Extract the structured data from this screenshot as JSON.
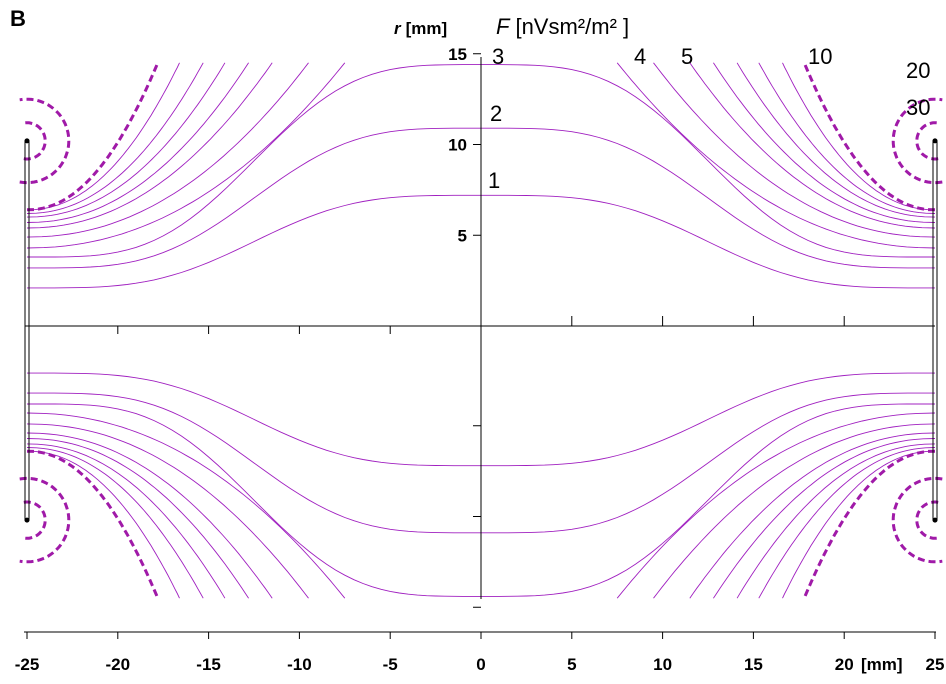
{
  "panel_label": "B",
  "chart_data": {
    "type": "line",
    "title": "",
    "panel": "B",
    "xlabel": "[mm]",
    "ylabel": "r [mm]",
    "ylabel_symbol": "r",
    "ylabel_unit": "[mm]",
    "zlabel": "F [nVsm²/m² ]",
    "zlabel_symbol": "F",
    "zlabel_unit": "[nVsm²/m² ]",
    "xlim": [
      -25,
      25
    ],
    "ylim": [
      -15,
      15
    ],
    "x_ticks": [
      -25,
      -20,
      -15,
      -10,
      -5,
      0,
      5,
      10,
      15,
      20,
      25
    ],
    "x_tick_labels": [
      "-25",
      "-20",
      "-15",
      "-10",
      "-5",
      "0",
      "5",
      "10",
      "15",
      "20",
      "25"
    ],
    "y_ticks": [
      5,
      10,
      15
    ],
    "y_tick_labels": [
      "5",
      "10",
      "15"
    ],
    "symmetry": "mirror-about-r=0",
    "coil_positions_mm": [
      -25,
      25
    ],
    "coil_radius_mm": 10.2,
    "series": [
      {
        "name": "1",
        "label": "1",
        "r_at_center": 7.2,
        "r_at_edge": 2.1,
        "style": "thin"
      },
      {
        "name": "2",
        "label": "2",
        "r_at_center": 10.9,
        "r_at_edge": 3.2,
        "style": "thin"
      },
      {
        "name": "3",
        "label": "3",
        "r_at_center": 14.4,
        "r_at_edge": 3.8,
        "style": "thin"
      },
      {
        "name": "4",
        "label": "4",
        "r_at_edge": 4.3,
        "x_exit": 7.5,
        "style": "thin"
      },
      {
        "name": "",
        "label": "",
        "r_at_edge": 4.9,
        "x_exit": 9.5,
        "style": "thin"
      },
      {
        "name": "5",
        "label": "5",
        "r_at_edge": 5.4,
        "x_exit": 11.5,
        "style": "thin"
      },
      {
        "name": "",
        "label": "",
        "r_at_edge": 5.7,
        "x_exit": 12.8,
        "style": "thin"
      },
      {
        "name": "",
        "label": "",
        "r_at_edge": 6.0,
        "x_exit": 14.1,
        "style": "thin"
      },
      {
        "name": "",
        "label": "",
        "r_at_edge": 6.2,
        "x_exit": 15.3,
        "style": "thin"
      },
      {
        "name": "",
        "label": "",
        "r_at_edge": 6.4,
        "x_exit": 16.6,
        "style": "thin"
      },
      {
        "name": "10",
        "label": "10",
        "r_at_edge": 6.4,
        "x_exit": 17.8,
        "style": "thick"
      },
      {
        "name": "20",
        "label": "20",
        "loop_radius_mm": 2.3,
        "style": "thick"
      },
      {
        "name": "30",
        "label": "30",
        "loop_radius_mm": 1.0,
        "style": "thick"
      }
    ]
  }
}
